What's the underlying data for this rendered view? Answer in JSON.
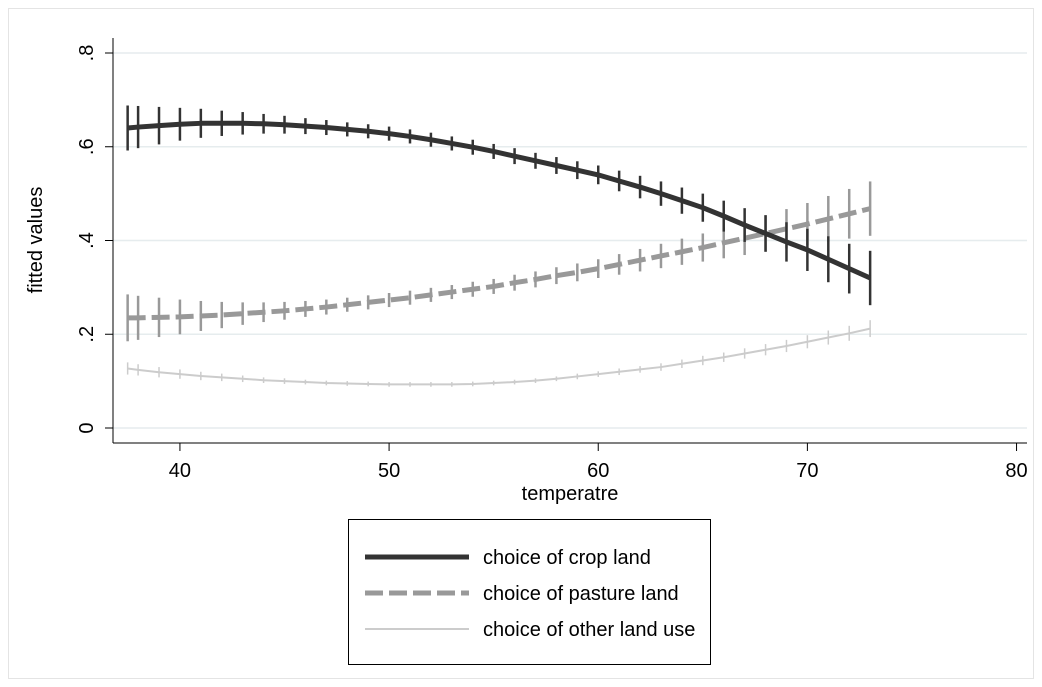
{
  "chart_data": {
    "type": "line",
    "x_label": "temperatre",
    "y_label": "fitted values",
    "xlim": [
      36.8,
      80.5
    ],
    "ylim": [
      -0.032,
      0.832
    ],
    "xticks": [
      40,
      50,
      60,
      70,
      80
    ],
    "yticks": [
      0,
      {
        "value": 0.2,
        "label": ".2"
      },
      {
        "value": 0.4,
        "label": ".4"
      },
      {
        "value": 0.6,
        "label": ".6"
      },
      {
        "value": 0.8,
        "label": ".8"
      }
    ],
    "grid": true,
    "x": [
      37.5,
      38,
      39,
      40,
      41,
      42,
      43,
      44,
      45,
      46,
      47,
      48,
      49,
      50,
      51,
      52,
      53,
      54,
      55,
      56,
      57,
      58,
      59,
      60,
      61,
      62,
      63,
      64,
      65,
      66,
      67,
      68,
      69,
      70,
      71,
      72,
      73
    ],
    "series": [
      {
        "name": "choice of crop land",
        "color": "#333333",
        "line_style": "solid",
        "values": [
          0.64,
          0.642,
          0.645,
          0.648,
          0.65,
          0.65,
          0.65,
          0.649,
          0.647,
          0.644,
          0.641,
          0.637,
          0.633,
          0.628,
          0.622,
          0.615,
          0.607,
          0.599,
          0.59,
          0.58,
          0.57,
          0.56,
          0.55,
          0.54,
          0.527,
          0.514,
          0.5,
          0.485,
          0.47,
          0.452,
          0.433,
          0.415,
          0.397,
          0.38,
          0.36,
          0.34,
          0.32
        ],
        "errors": [
          0.048,
          0.045,
          0.04,
          0.035,
          0.031,
          0.027,
          0.024,
          0.021,
          0.019,
          0.017,
          0.016,
          0.015,
          0.015,
          0.015,
          0.015,
          0.015,
          0.015,
          0.016,
          0.016,
          0.017,
          0.017,
          0.018,
          0.019,
          0.02,
          0.022,
          0.024,
          0.026,
          0.028,
          0.03,
          0.033,
          0.036,
          0.039,
          0.042,
          0.045,
          0.049,
          0.053,
          0.058
        ]
      },
      {
        "name": "choice of pasture land",
        "color": "#999999",
        "line_style": "dashed",
        "values": [
          0.235,
          0.235,
          0.236,
          0.237,
          0.239,
          0.241,
          0.244,
          0.247,
          0.25,
          0.254,
          0.258,
          0.263,
          0.268,
          0.273,
          0.278,
          0.284,
          0.29,
          0.296,
          0.302,
          0.31,
          0.317,
          0.325,
          0.332,
          0.34,
          0.349,
          0.358,
          0.367,
          0.376,
          0.385,
          0.395,
          0.405,
          0.415,
          0.425,
          0.435,
          0.446,
          0.457,
          0.468
        ],
        "errors": [
          0.05,
          0.047,
          0.042,
          0.037,
          0.032,
          0.028,
          0.024,
          0.021,
          0.019,
          0.017,
          0.016,
          0.015,
          0.015,
          0.015,
          0.015,
          0.015,
          0.015,
          0.016,
          0.016,
          0.017,
          0.017,
          0.018,
          0.019,
          0.02,
          0.022,
          0.024,
          0.026,
          0.028,
          0.03,
          0.033,
          0.036,
          0.039,
          0.042,
          0.045,
          0.049,
          0.053,
          0.058
        ]
      },
      {
        "name": "choice of other land use",
        "color": "#cccccc",
        "line_style": "thin",
        "values": [
          0.127,
          0.124,
          0.119,
          0.115,
          0.111,
          0.108,
          0.105,
          0.102,
          0.1,
          0.098,
          0.096,
          0.095,
          0.094,
          0.093,
          0.093,
          0.093,
          0.093,
          0.094,
          0.096,
          0.098,
          0.101,
          0.105,
          0.11,
          0.115,
          0.12,
          0.125,
          0.13,
          0.137,
          0.144,
          0.151,
          0.159,
          0.167,
          0.175,
          0.184,
          0.193,
          0.202,
          0.212
        ],
        "errors": [
          0.013,
          0.012,
          0.011,
          0.01,
          0.009,
          0.008,
          0.007,
          0.006,
          0.006,
          0.005,
          0.005,
          0.005,
          0.005,
          0.005,
          0.005,
          0.005,
          0.005,
          0.005,
          0.005,
          0.005,
          0.005,
          0.005,
          0.006,
          0.006,
          0.007,
          0.007,
          0.008,
          0.009,
          0.01,
          0.01,
          0.011,
          0.012,
          0.013,
          0.014,
          0.015,
          0.016,
          0.018
        ]
      }
    ]
  }
}
